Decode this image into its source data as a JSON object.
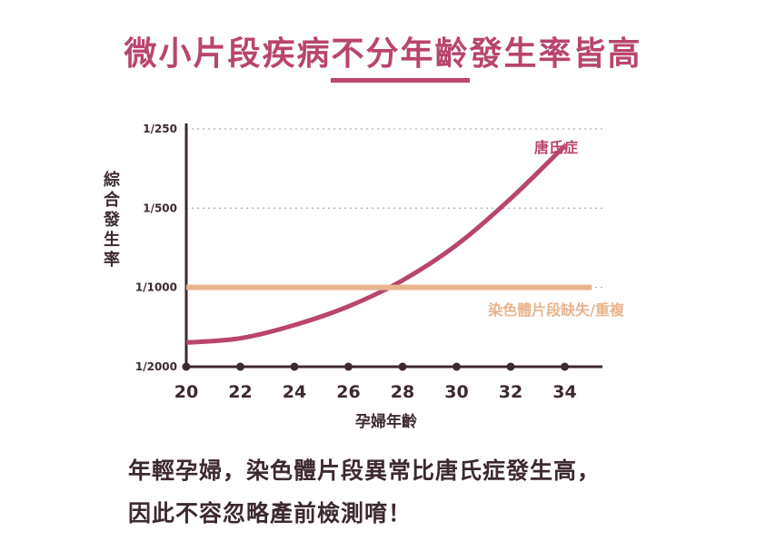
{
  "title": {
    "part1": "微小片段疾病",
    "highlight": "不分年齡",
    "part2": "發生率皆高"
  },
  "chart_data": {
    "type": "line",
    "xlabel": "孕婦年齡",
    "ylabel": "綜合發生率",
    "x_ticks": [
      20,
      22,
      24,
      26,
      28,
      30,
      32,
      34
    ],
    "y_ticks": [
      "1/250",
      "1/500",
      "1/1000",
      "1/2000"
    ],
    "y_scale": "log (reciprocal risk)",
    "grid": "horizontal dotted",
    "series": [
      {
        "name": "唐氏症",
        "color": "#b9456f",
        "x": [
          20,
          22,
          24,
          26,
          28,
          30,
          32,
          34
        ],
        "y": [
          "1/1620",
          "1/1560",
          "1/1390",
          "1/1180",
          "1/940",
          "1/690",
          "1/460",
          "1/290"
        ]
      },
      {
        "name": "染色體片段缺失/重複",
        "color": "#e8b48e",
        "x": [
          20,
          35
        ],
        "y": [
          "1/1000",
          "1/1000"
        ]
      }
    ]
  },
  "caption": {
    "line1": "年輕孕婦，染色體片段異常比唐氏症發生高，",
    "line2": "因此不容忽略產前檢測唷！"
  }
}
